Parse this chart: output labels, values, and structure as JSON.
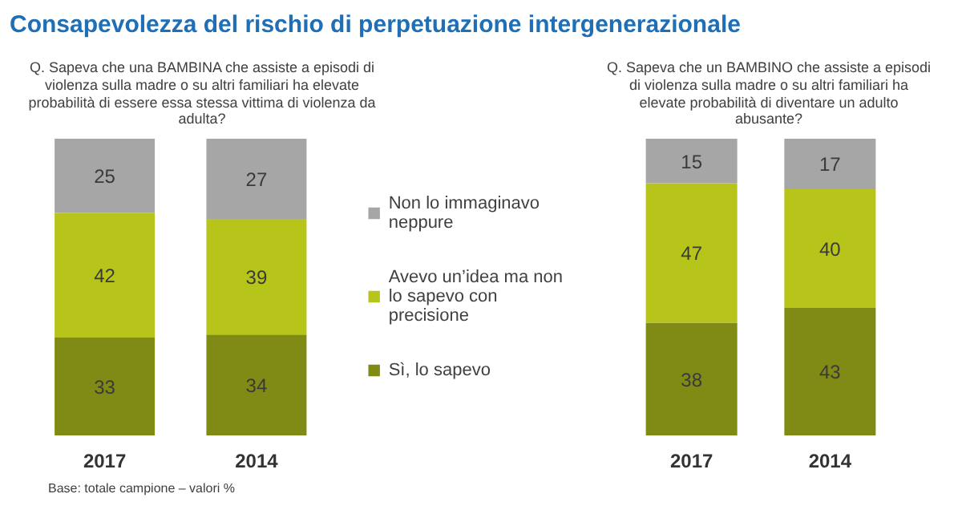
{
  "chart_data": [
    {
      "type": "bar",
      "stacked": true,
      "title": "Consapevolezza  del rischio di perpetuazione  intergenerazionale",
      "subtitle": "Q. Sapeva che una BAMBINA che assiste a episodi di violenza sulla madre o su altri familiari ha elevate probabilità di essere essa stessa vittima di violenza da adulta?",
      "categories": [
        "2017",
        "2014"
      ],
      "series": [
        {
          "name": "Sì, lo sapevo",
          "color": "#7f8b14",
          "values": [
            33,
            34
          ]
        },
        {
          "name": "Avevo un’idea ma non lo sapevo con precisione",
          "color": "#b7c41a",
          "values": [
            42,
            39
          ]
        },
        {
          "name": "Non lo immaginavo neppure",
          "color": "#a6a6a6",
          "values": [
            25,
            27
          ]
        }
      ],
      "data_labels": true,
      "legend": "right",
      "grid": false,
      "annotations": [
        "Base: totale campione – valori %"
      ]
    },
    {
      "type": "bar",
      "stacked": true,
      "subtitle": "Q. Sapeva che un BAMBINO che assiste a episodi di violenza sulla madre o su altri familiari ha elevate probabilità di diventare un adulto abusante?",
      "categories": [
        "2017",
        "2014"
      ],
      "series": [
        {
          "color": "#7f8b14",
          "values": [
            38,
            43
          ]
        },
        {
          "color": "#b7c41a",
          "values": [
            47,
            40
          ]
        },
        {
          "color": "#a6a6a6",
          "values": [
            15,
            17
          ]
        }
      ],
      "data_labels": true,
      "grid": false
    }
  ]
}
